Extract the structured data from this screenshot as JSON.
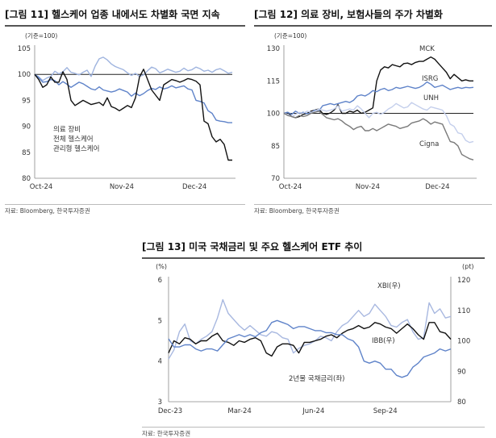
{
  "figures": [
    {
      "title": "[그림 11] 헬스케어 업종 내에서도 차별화 국면 지속",
      "source": "자료: Bloomberg, 한국투자증권"
    },
    {
      "title": "[그림 12] 의료 장비, 보험사들의 주가 차별화",
      "source": "자료: Bloomberg, 한국투자증권"
    },
    {
      "title": "[그림 13] 미국 국채금리 및 주요 헬스케어 ETF 추이",
      "source": "자료: 한국투자증권"
    }
  ],
  "chart_data": [
    {
      "type": "line",
      "unit_label": "(기준=100)",
      "x_ticks": [
        "Oct-24",
        "Nov-24",
        "Dec-24"
      ],
      "ylim": [
        80,
        105
      ],
      "y_ticks": [
        80,
        85,
        90,
        95,
        100,
        105
      ],
      "reference_line": 100,
      "legend": [
        "의료 장비",
        "전체 헬스케어",
        "관리형 헬스케어"
      ],
      "legend_placement": "bottom-left",
      "series": [
        {
          "name": "의료 장비",
          "color": "#9fb4df",
          "values": [
            100,
            99.5,
            98.8,
            99.3,
            99.6,
            100.6,
            100.1,
            100.5,
            101.3,
            100.4,
            100.2,
            99.9,
            100.4,
            100.8,
            99.6,
            101.6,
            103.0,
            103.3,
            102.8,
            102.0,
            101.5,
            101.2,
            100.9,
            100.3,
            99.8,
            100.2,
            99.6,
            99.9,
            100.7,
            101.4,
            101.1,
            100.3,
            100.6,
            101.0,
            100.7,
            100.4,
            100.6,
            101.2,
            100.7,
            100.9,
            101.4,
            101.1,
            100.6,
            100.8,
            100.4,
            100.9,
            101.1,
            100.7,
            100.2,
            100.4
          ]
        },
        {
          "name": "전체 헬스케어",
          "color": "#5f83c9",
          "values": [
            100,
            99.4,
            98.5,
            98.6,
            99.0,
            98.8,
            98.0,
            98.6,
            98.1,
            97.5,
            98.0,
            98.5,
            98.2,
            97.7,
            97.2,
            97.0,
            97.6,
            97.0,
            96.8,
            96.6,
            96.8,
            97.2,
            96.9,
            96.6,
            95.8,
            96.4,
            95.9,
            96.3,
            96.9,
            97.3,
            97.1,
            97.6,
            97.2,
            97.4,
            97.8,
            97.4,
            97.6,
            97.8,
            97.2,
            97.0,
            95.0,
            94.8,
            94.5,
            93.0,
            92.5,
            91.2,
            91.0,
            90.9,
            90.7,
            90.7
          ]
        },
        {
          "name": "관리형 헬스케어",
          "color": "#111111",
          "values": [
            100,
            99.0,
            97.5,
            98.0,
            99.5,
            98.5,
            98.5,
            100.5,
            99.0,
            95.0,
            94.0,
            94.5,
            95.0,
            94.6,
            94.2,
            94.4,
            94.6,
            94.0,
            95.5,
            93.8,
            93.5,
            93.0,
            93.5,
            94.0,
            93.6,
            95.5,
            99.5,
            101.0,
            99.0,
            97.0,
            96.0,
            95.0,
            98.0,
            98.5,
            99.0,
            98.8,
            98.5,
            98.8,
            99.2,
            99.0,
            98.7,
            98.0,
            91.0,
            90.5,
            88.0,
            87.0,
            87.5,
            86.5,
            83.5,
            83.5
          ]
        }
      ]
    },
    {
      "type": "line",
      "unit_label": "(기준=100)",
      "x_ticks": [
        "Oct-24",
        "Nov-24",
        "Dec-24"
      ],
      "ylim": [
        70,
        130
      ],
      "y_ticks": [
        70,
        85,
        100,
        115,
        130
      ],
      "reference_line": 100,
      "series_labels_inline": true,
      "series": [
        {
          "name": "MCK",
          "color": "#111111",
          "values": [
            100,
            100.5,
            98.5,
            98.0,
            98.5,
            99.5,
            100.0,
            101.0,
            101.5,
            102.0,
            100.0,
            99.5,
            100.2,
            101.5,
            104.0,
            100.0,
            100.0,
            101.0,
            100.5,
            101.5,
            100.0,
            100.5,
            101.5,
            102.5,
            115.0,
            120.0,
            121.5,
            121.0,
            122.5,
            122.0,
            121.5,
            123.0,
            123.2,
            122.5,
            123.5,
            124.0,
            124.0,
            125.0,
            126.0,
            125.0,
            123.0,
            121.0,
            119.0,
            116.0,
            118.0,
            116.5,
            115.0,
            115.5,
            115.0,
            115.0
          ]
        },
        {
          "name": "ISRG",
          "color": "#5f83c9",
          "values": [
            100,
            100.5,
            99.5,
            101.0,
            100.0,
            100.5,
            99.8,
            100.2,
            101.5,
            101.0,
            103.5,
            104.0,
            104.5,
            104.0,
            104.5,
            105.0,
            105.5,
            105.0,
            106.0,
            108.0,
            108.5,
            108.0,
            109.0,
            110.5,
            110.0,
            111.0,
            111.5,
            110.5,
            111.0,
            112.0,
            111.5,
            112.0,
            112.5,
            112.0,
            111.5,
            112.0,
            113.0,
            114.5,
            113.5,
            112.0,
            112.5,
            113.0,
            112.0,
            111.0,
            111.5,
            112.0,
            111.5,
            112.0,
            111.8,
            112.0
          ]
        },
        {
          "name": "UNH",
          "color": "#c4cfec",
          "values": [
            100,
            99.5,
            98.5,
            99.5,
            100.5,
            100.0,
            101.0,
            100.5,
            101.0,
            102.0,
            101.5,
            101.0,
            101.5,
            102.0,
            103.5,
            101.0,
            101.5,
            102.0,
            101.5,
            103.5,
            102.0,
            100.0,
            98.0,
            100.0,
            100.5,
            99.5,
            100.5,
            102.0,
            103.0,
            104.5,
            103.5,
            102.5,
            103.0,
            105.0,
            104.0,
            103.0,
            102.0,
            101.5,
            103.0,
            102.5,
            102.0,
            101.5,
            99.0,
            95.0,
            94.0,
            91.0,
            90.5,
            87.5,
            86.5,
            87.0
          ]
        },
        {
          "name": "Cigna",
          "color": "#7a7a7a",
          "values": [
            100,
            99.0,
            98.5,
            98.0,
            99.0,
            98.5,
            99.0,
            100.0,
            100.5,
            101.0,
            99.5,
            98.0,
            97.5,
            97.0,
            97.5,
            96.5,
            95.0,
            94.0,
            92.5,
            93.5,
            94.0,
            92.0,
            92.0,
            93.0,
            92.0,
            93.0,
            94.0,
            95.0,
            94.5,
            94.0,
            93.0,
            93.5,
            94.0,
            95.5,
            96.0,
            96.5,
            97.5,
            96.5,
            95.0,
            96.0,
            95.5,
            95.0,
            91.0,
            87.0,
            86.5,
            85.0,
            81.0,
            80.0,
            79.0,
            78.5
          ]
        }
      ]
    },
    {
      "type": "line",
      "left_axis_label": "(%)",
      "right_axis_label": "(pt)",
      "x_ticks": [
        "Dec-23",
        "Mar-24",
        "Jun-24",
        "Sep-24"
      ],
      "ylim_left": [
        3,
        6
      ],
      "y_ticks_left": [
        3,
        4,
        5,
        6
      ],
      "ylim_right": [
        80,
        120
      ],
      "y_ticks_right": [
        80,
        90,
        100,
        110,
        120
      ],
      "series_labels_inline": true,
      "series": [
        {
          "name": "XBI(우)",
          "axis": "right",
          "color": "#a8b8e0",
          "values": [
            94.0,
            97.0,
            103.0,
            105.5,
            100.0,
            99.0,
            100.5,
            101.5,
            103.0,
            107.5,
            113.5,
            109.0,
            107.0,
            105.0,
            103.5,
            105.0,
            103.5,
            102.0,
            101.5,
            103.0,
            102.5,
            101.0,
            100.5,
            96.0,
            97.5,
            98.5,
            99.0,
            100.0,
            101.5,
            101.0,
            100.0,
            103.0,
            105.0,
            106.0,
            108.0,
            110.0,
            108.0,
            109.0,
            112.0,
            110.0,
            108.0,
            105.0,
            104.5,
            106.0,
            107.0,
            103.0,
            100.5,
            101.0,
            112.5,
            109.0,
            110.5,
            107.5,
            108.0
          ]
        },
        {
          "name": "IBB(우)",
          "axis": "right",
          "color": "#111111",
          "values": [
            96.0,
            100.0,
            99.0,
            101.0,
            100.5,
            99.0,
            100.0,
            100.0,
            101.5,
            102.5,
            100.0,
            99.5,
            98.5,
            100.0,
            99.5,
            100.5,
            101.0,
            100.0,
            96.0,
            95.0,
            98.0,
            99.0,
            99.0,
            98.5,
            96.0,
            99.5,
            99.5,
            100.0,
            100.5,
            101.5,
            102.0,
            101.0,
            102.5,
            103.5,
            104.0,
            105.0,
            104.0,
            104.5,
            106.0,
            105.5,
            104.5,
            104.0,
            102.5,
            104.0,
            105.5,
            104.0,
            102.0,
            100.5,
            106.0,
            106.0,
            103.0,
            102.5,
            100.5
          ]
        },
        {
          "name": "2년물 국채금리(좌)",
          "axis": "left",
          "color": "#5f83c9",
          "values": [
            4.55,
            4.35,
            4.35,
            4.4,
            4.4,
            4.3,
            4.25,
            4.3,
            4.3,
            4.25,
            4.4,
            4.55,
            4.6,
            4.65,
            4.6,
            4.65,
            4.6,
            4.7,
            4.75,
            4.95,
            5.0,
            4.95,
            4.9,
            4.8,
            4.85,
            4.85,
            4.8,
            4.75,
            4.75,
            4.7,
            4.7,
            4.65,
            4.65,
            4.55,
            4.5,
            4.35,
            4.0,
            3.95,
            4.0,
            3.95,
            3.8,
            3.8,
            3.65,
            3.6,
            3.65,
            3.85,
            3.95,
            4.1,
            4.15,
            4.2,
            4.3,
            4.25,
            4.3
          ]
        }
      ]
    }
  ]
}
